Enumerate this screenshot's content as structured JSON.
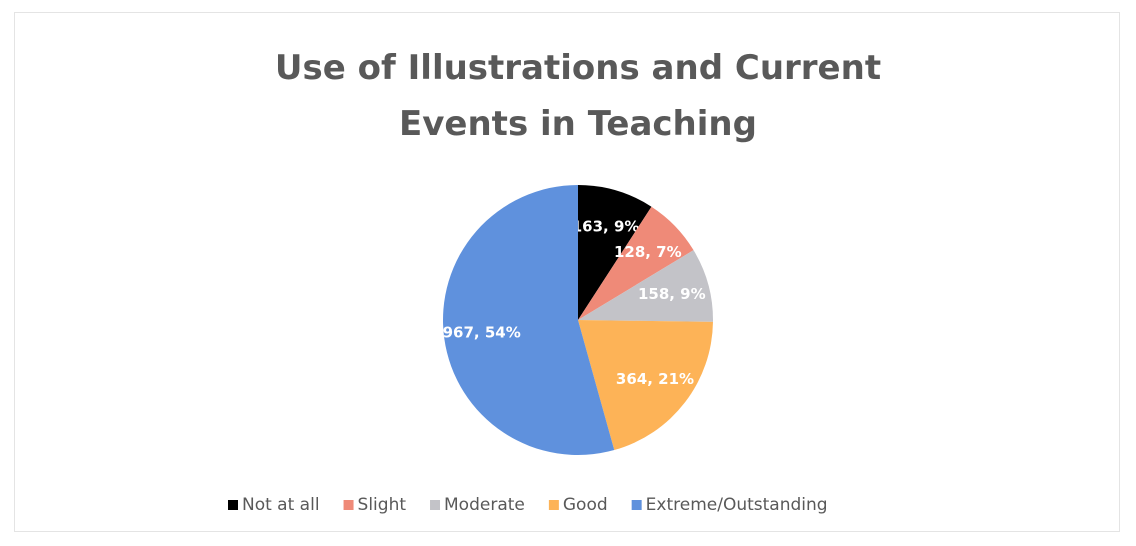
{
  "chart_data": {
    "type": "pie",
    "title": "Use of Illustrations and Current Events in Teaching",
    "categories": [
      "Not at all",
      "Slight",
      "Moderate",
      "Good",
      "Extreme/Outstanding"
    ],
    "values": [
      163,
      128,
      158,
      364,
      967
    ],
    "value_labels": [
      "163, 9%",
      "128, 7%",
      "158, 9%",
      "364, 21%",
      "967, 54%"
    ],
    "colors": [
      "#000000",
      "#ef8a78",
      "#c3c3c8",
      "#fdb357",
      "#5f91dd"
    ],
    "legend": "bottom"
  }
}
